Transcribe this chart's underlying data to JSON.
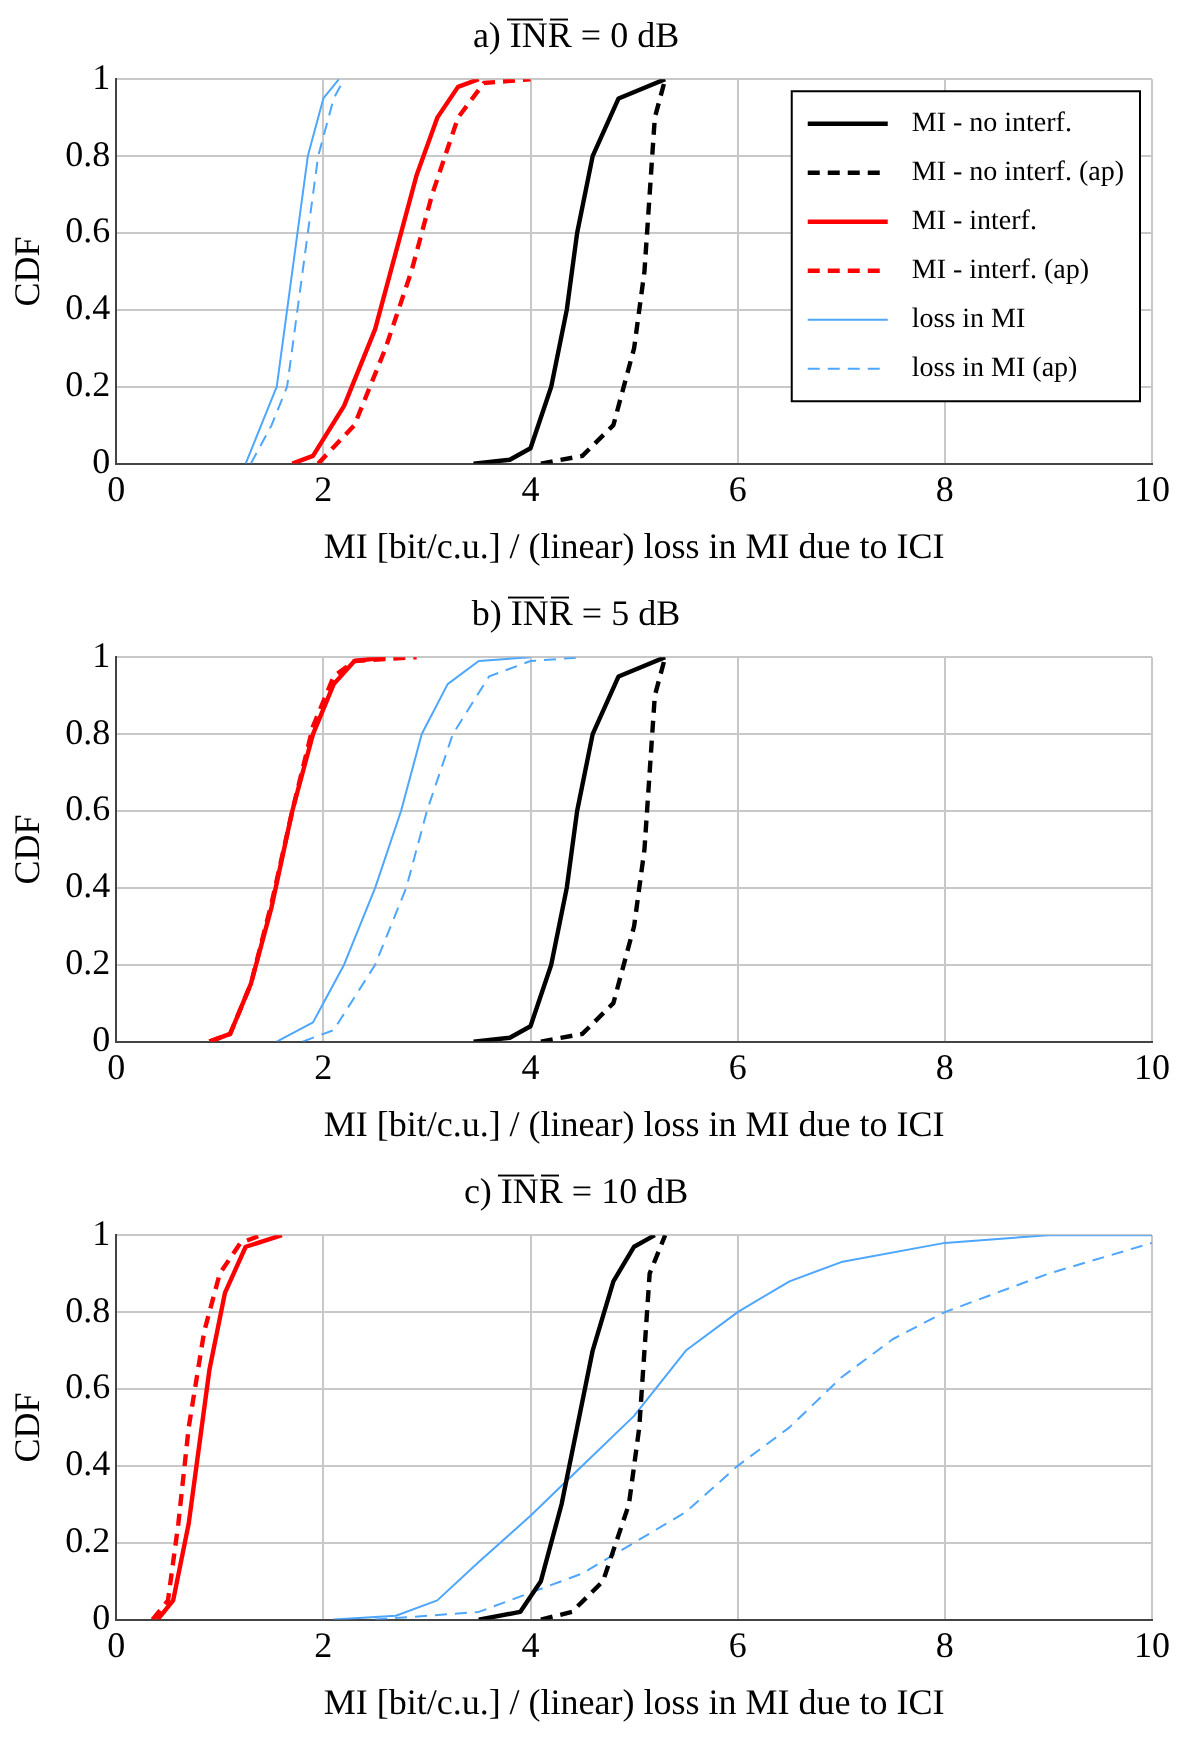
{
  "chart_data": [
    {
      "type": "line",
      "title": "a) I̅N̅R̅ = 0 dB",
      "xlabel": "MI [bit/c.u.] / (linear) loss in MI due to ICI",
      "ylabel": "CDF",
      "xlim": [
        0,
        10
      ],
      "ylim": [
        0,
        1
      ],
      "xticks": [
        0,
        2,
        4,
        6,
        8,
        10
      ],
      "yticks": [
        0,
        0.2,
        0.4,
        0.6,
        0.8,
        1
      ],
      "grid": true,
      "legend": "top right",
      "series": [
        {
          "name": "MI - no interf.",
          "color": "#000000",
          "line_style": "solid",
          "x": [
            3.45,
            3.8,
            4.0,
            4.2,
            4.35,
            4.45,
            4.6,
            4.85,
            5.3
          ],
          "values": [
            0,
            0.01,
            0.04,
            0.2,
            0.4,
            0.6,
            0.8,
            0.95,
            1
          ]
        },
        {
          "name": "MI - no interf. (ap)",
          "color": "#000000",
          "line_style": "dashed",
          "x": [
            4.1,
            4.5,
            4.8,
            5.0,
            5.1,
            5.15,
            5.2,
            5.3
          ],
          "values": [
            0,
            0.02,
            0.1,
            0.3,
            0.5,
            0.7,
            0.9,
            1
          ]
        },
        {
          "name": "MI - interf.",
          "color": "#ff0000",
          "line_style": "solid",
          "x": [
            1.7,
            1.9,
            2.2,
            2.5,
            2.7,
            2.9,
            3.1,
            3.3,
            3.5
          ],
          "values": [
            0,
            0.02,
            0.15,
            0.35,
            0.55,
            0.75,
            0.9,
            0.98,
            1
          ]
        },
        {
          "name": "MI - interf. (ap)",
          "color": "#ff0000",
          "line_style": "dashed",
          "x": [
            1.95,
            2.3,
            2.6,
            2.85,
            3.05,
            3.3,
            3.55,
            4.0
          ],
          "values": [
            0,
            0.1,
            0.3,
            0.5,
            0.7,
            0.9,
            0.99,
            1
          ]
        },
        {
          "name": "loss in MI",
          "color": "#4da6ff",
          "line_style": "solid",
          "x": [
            1.25,
            1.4,
            1.55,
            1.65,
            1.75,
            1.85,
            2.0,
            2.15
          ],
          "values": [
            0,
            0.1,
            0.2,
            0.4,
            0.6,
            0.8,
            0.95,
            1
          ]
        },
        {
          "name": "loss in MI (ap)",
          "color": "#4da6ff",
          "line_style": "dashed",
          "x": [
            1.3,
            1.5,
            1.65,
            1.75,
            1.85,
            1.95,
            2.1,
            2.2
          ],
          "values": [
            0,
            0.1,
            0.2,
            0.4,
            0.6,
            0.8,
            0.95,
            1
          ]
        }
      ]
    },
    {
      "type": "line",
      "title": "b) I̅N̅R̅ = 5 dB",
      "xlabel": "MI [bit/c.u.] / (linear) loss in MI due to ICI",
      "ylabel": "CDF",
      "xlim": [
        0,
        10
      ],
      "ylim": [
        0,
        1
      ],
      "xticks": [
        0,
        2,
        4,
        6,
        8,
        10
      ],
      "yticks": [
        0,
        0.2,
        0.4,
        0.6,
        0.8,
        1
      ],
      "grid": true,
      "series": [
        {
          "color": "#000000",
          "line_style": "solid",
          "x": [
            3.45,
            3.8,
            4.0,
            4.2,
            4.35,
            4.45,
            4.6,
            4.85,
            5.3
          ],
          "values": [
            0,
            0.01,
            0.04,
            0.2,
            0.4,
            0.6,
            0.8,
            0.95,
            1
          ]
        },
        {
          "color": "#000000",
          "line_style": "dashed",
          "x": [
            4.1,
            4.5,
            4.8,
            5.0,
            5.1,
            5.15,
            5.2,
            5.3
          ],
          "values": [
            0,
            0.02,
            0.1,
            0.3,
            0.5,
            0.7,
            0.9,
            1
          ]
        },
        {
          "color": "#ff0000",
          "line_style": "solid",
          "x": [
            0.9,
            1.1,
            1.3,
            1.5,
            1.7,
            1.9,
            2.1,
            2.3,
            2.6
          ],
          "values": [
            0,
            0.02,
            0.15,
            0.35,
            0.6,
            0.8,
            0.93,
            0.99,
            1
          ]
        },
        {
          "color": "#ff0000",
          "line_style": "dashed",
          "x": [
            0.9,
            1.1,
            1.3,
            1.5,
            1.7,
            1.9,
            2.1,
            2.3,
            2.9
          ],
          "values": [
            0,
            0.02,
            0.15,
            0.36,
            0.6,
            0.82,
            0.95,
            0.99,
            1
          ]
        },
        {
          "color": "#4da6ff",
          "line_style": "solid",
          "x": [
            1.55,
            1.9,
            2.2,
            2.5,
            2.75,
            2.95,
            3.2,
            3.5,
            4.0
          ],
          "values": [
            0,
            0.05,
            0.2,
            0.4,
            0.6,
            0.8,
            0.93,
            0.99,
            1
          ]
        },
        {
          "color": "#4da6ff",
          "line_style": "dashed",
          "x": [
            1.8,
            2.1,
            2.5,
            2.8,
            3.0,
            3.25,
            3.6,
            4.0,
            4.5
          ],
          "values": [
            0,
            0.03,
            0.2,
            0.4,
            0.6,
            0.8,
            0.95,
            0.99,
            1
          ]
        }
      ]
    },
    {
      "type": "line",
      "title": "c) I̅N̅R̅ = 10 dB",
      "xlabel": "MI [bit/c.u.] / (linear) loss in MI due to ICI",
      "ylabel": "CDF",
      "xlim": [
        0,
        10
      ],
      "ylim": [
        0,
        1
      ],
      "xticks": [
        0,
        2,
        4,
        6,
        8,
        10
      ],
      "yticks": [
        0,
        0.2,
        0.4,
        0.6,
        0.8,
        1
      ],
      "grid": true,
      "series": [
        {
          "color": "#000000",
          "line_style": "solid",
          "x": [
            3.5,
            3.9,
            4.1,
            4.3,
            4.45,
            4.6,
            4.8,
            5.0,
            5.2
          ],
          "values": [
            0,
            0.02,
            0.1,
            0.3,
            0.5,
            0.7,
            0.88,
            0.97,
            1
          ]
        },
        {
          "color": "#000000",
          "line_style": "dashed",
          "x": [
            4.1,
            4.4,
            4.7,
            4.95,
            5.05,
            5.1,
            5.15,
            5.3
          ],
          "values": [
            0,
            0.02,
            0.1,
            0.3,
            0.5,
            0.7,
            0.9,
            1
          ]
        },
        {
          "color": "#ff0000",
          "line_style": "solid",
          "x": [
            0.4,
            0.55,
            0.7,
            0.8,
            0.9,
            1.05,
            1.25,
            1.6
          ],
          "values": [
            0,
            0.05,
            0.25,
            0.45,
            0.65,
            0.85,
            0.97,
            1
          ]
        },
        {
          "color": "#ff0000",
          "line_style": "dashed",
          "x": [
            0.35,
            0.5,
            0.6,
            0.7,
            0.85,
            1.0,
            1.2,
            1.4
          ],
          "values": [
            0,
            0.05,
            0.25,
            0.5,
            0.75,
            0.9,
            0.98,
            1
          ]
        },
        {
          "color": "#4da6ff",
          "line_style": "solid",
          "x": [
            2.1,
            2.7,
            3.1,
            3.5,
            4.0,
            4.5,
            5.0,
            5.5,
            6.0,
            6.5,
            7.0,
            8.0,
            9.0,
            10
          ],
          "values": [
            0,
            0.01,
            0.05,
            0.15,
            0.27,
            0.4,
            0.53,
            0.7,
            0.8,
            0.88,
            0.93,
            0.98,
            1,
            1
          ]
        },
        {
          "color": "#4da6ff",
          "line_style": "dashed",
          "x": [
            2.5,
            3.5,
            4.5,
            5.5,
            6.0,
            6.5,
            7.0,
            7.5,
            8.0,
            9.0,
            10
          ],
          "values": [
            0,
            0.02,
            0.12,
            0.28,
            0.4,
            0.5,
            0.63,
            0.73,
            0.8,
            0.9,
            0.98
          ]
        }
      ]
    }
  ]
}
